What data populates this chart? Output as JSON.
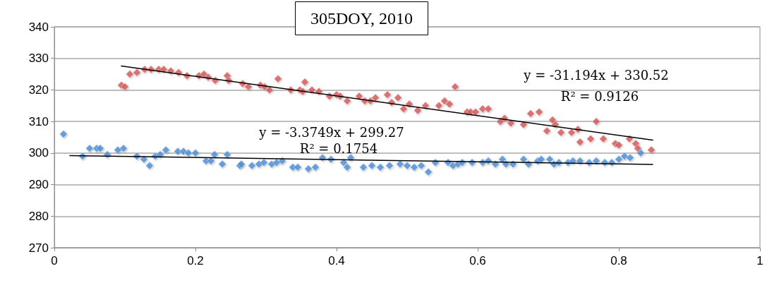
{
  "chart_data": {
    "type": "scatter",
    "title": "305DOY, 2010",
    "xlim": [
      0,
      1
    ],
    "xticks": [
      0,
      0.2,
      0.4,
      0.6,
      0.8,
      1
    ],
    "ylim": [
      270,
      340
    ],
    "yticks": [
      270,
      280,
      290,
      300,
      310,
      320,
      330,
      340
    ],
    "grid": "y",
    "marker": "diamond",
    "series": [
      {
        "color": "#d65a5a",
        "x": [
          0.095,
          0.1,
          0.107,
          0.117,
          0.128,
          0.137,
          0.148,
          0.155,
          0.165,
          0.176,
          0.188,
          0.205,
          0.212,
          0.218,
          0.228,
          0.245,
          0.247,
          0.267,
          0.275,
          0.292,
          0.298,
          0.305,
          0.317,
          0.335,
          0.348,
          0.352,
          0.355,
          0.365,
          0.375,
          0.39,
          0.4,
          0.405,
          0.415,
          0.432,
          0.44,
          0.448,
          0.455,
          0.472,
          0.478,
          0.487,
          0.495,
          0.503,
          0.515,
          0.526,
          0.545,
          0.553,
          0.56,
          0.568,
          0.585,
          0.59,
          0.597,
          0.607,
          0.615,
          0.632,
          0.638,
          0.647,
          0.665,
          0.675,
          0.687,
          0.698,
          0.706,
          0.71,
          0.718,
          0.733,
          0.742,
          0.745,
          0.76,
          0.768,
          0.778,
          0.795,
          0.8,
          0.815,
          0.824,
          0.827,
          0.846
        ],
        "values": [
          321.5,
          321,
          325,
          325.5,
          326.5,
          326.5,
          326.5,
          326.5,
          326,
          325.5,
          324.5,
          324.5,
          325,
          324,
          323,
          324.5,
          323,
          322,
          321,
          321.5,
          321,
          320,
          323.5,
          320,
          320,
          319.5,
          322.5,
          320,
          319.5,
          318,
          318.5,
          318,
          316.5,
          318,
          316.5,
          316.5,
          317.5,
          318.5,
          316,
          317.5,
          314,
          315.5,
          313.5,
          315,
          315,
          316.5,
          315.5,
          321,
          313,
          313,
          313,
          314,
          314,
          310,
          311,
          309.5,
          309,
          312.5,
          313,
          307,
          310.5,
          309,
          306.5,
          306.5,
          307.5,
          303.5,
          304.5,
          310,
          304.5,
          303,
          302.5,
          304.5,
          303,
          301.5,
          301
        ]
      },
      {
        "color": "#4f8fd6",
        "x": [
          0.013,
          0.04,
          0.05,
          0.06,
          0.065,
          0.075,
          0.09,
          0.098,
          0.117,
          0.127,
          0.135,
          0.143,
          0.15,
          0.158,
          0.175,
          0.183,
          0.19,
          0.2,
          0.215,
          0.222,
          0.227,
          0.238,
          0.245,
          0.263,
          0.265,
          0.28,
          0.29,
          0.297,
          0.308,
          0.315,
          0.323,
          0.338,
          0.345,
          0.36,
          0.37,
          0.38,
          0.392,
          0.41,
          0.415,
          0.42,
          0.438,
          0.45,
          0.462,
          0.475,
          0.49,
          0.5,
          0.51,
          0.52,
          0.53,
          0.54,
          0.558,
          0.565,
          0.572,
          0.578,
          0.592,
          0.607,
          0.615,
          0.625,
          0.635,
          0.64,
          0.65,
          0.665,
          0.672,
          0.685,
          0.69,
          0.702,
          0.708,
          0.715,
          0.728,
          0.735,
          0.745,
          0.758,
          0.768,
          0.78,
          0.79,
          0.8,
          0.808,
          0.816,
          0.831
        ],
        "values": [
          306,
          299,
          301.5,
          301.5,
          301.5,
          299.5,
          301,
          301.5,
          299,
          298,
          296,
          299,
          299.5,
          301,
          300.5,
          300.5,
          300,
          300,
          297.5,
          297.5,
          299.5,
          296.5,
          299.5,
          296,
          296.5,
          296,
          296.5,
          297,
          296.5,
          297,
          297.5,
          295.5,
          295.5,
          295,
          295.5,
          298.5,
          298,
          297,
          295.5,
          298.5,
          295.5,
          296,
          295.5,
          296,
          296.5,
          296,
          295.5,
          296,
          294,
          297,
          297,
          296,
          296.5,
          297,
          297,
          297,
          297.5,
          296.5,
          298,
          296.5,
          296.5,
          298,
          296.5,
          297.5,
          298,
          298,
          296.5,
          297,
          297,
          297.5,
          297.5,
          297,
          297.5,
          297,
          297,
          298,
          299,
          298.5,
          300
        ]
      },
      {
        "type": "line",
        "color": "#000000",
        "marker": "none",
        "x": [
          0.095,
          0.848
        ],
        "values": [
          327.6,
          304.1
        ]
      },
      {
        "type": "line",
        "color": "#000000",
        "marker": "none",
        "x": [
          0.022,
          0.848
        ],
        "values": [
          299.2,
          296.4
        ]
      }
    ],
    "annotations": [
      "y = -31.194x + 330.52",
      "R² = 0.9126",
      "y = -3.3749x + 299.27",
      "R² = 0.1754"
    ]
  }
}
